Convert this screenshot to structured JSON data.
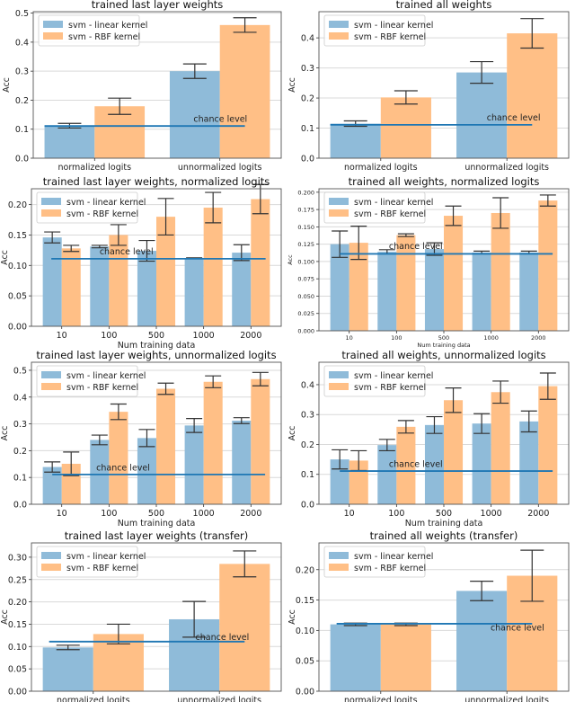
{
  "colors": {
    "linear": "#8fbbd9",
    "rbf": "#ffbf86",
    "chance_line": "#1f77b4",
    "errorbar": "#333333"
  },
  "chart_data": [
    {
      "type": "bar",
      "title": "trained last layer weights",
      "ylabel": "Acc",
      "xlabel": "",
      "categories": [
        "normalized logits",
        "unnormalized logits"
      ],
      "ylim": [
        0,
        0.505
      ],
      "yticks": [
        "0.0",
        "0.1",
        "0.2",
        "0.3",
        "0.4",
        "0.5"
      ],
      "ytick_values": [
        0,
        0.1,
        0.2,
        0.3,
        0.4,
        0.5
      ],
      "grid": true,
      "legend": "top-left",
      "series": [
        {
          "name": "svm - linear kernel",
          "values": [
            0.112,
            0.3
          ],
          "errors": [
            0.008,
            0.025
          ]
        },
        {
          "name": "svm - RBF kernel",
          "values": [
            0.179,
            0.459
          ],
          "errors": [
            0.028,
            0.025
          ]
        }
      ],
      "chance_level": {
        "label": "chance level",
        "value": 0.111,
        "x_range": [
          -0.4,
          1.2
        ],
        "label_at": [
          0.79,
          0.125
        ]
      }
    },
    {
      "type": "bar",
      "title": "trained all weights",
      "ylabel": "Acc",
      "xlabel": "",
      "categories": [
        "normalized logits",
        "unnormalized logits"
      ],
      "ylim": [
        0,
        0.487
      ],
      "yticks": [
        "0.0",
        "0.1",
        "0.2",
        "0.3",
        "0.4"
      ],
      "ytick_values": [
        0,
        0.1,
        0.2,
        0.3,
        0.4
      ],
      "grid": true,
      "legend": "top-left",
      "series": [
        {
          "name": "svm - linear kernel",
          "values": [
            0.115,
            0.285
          ],
          "errors": [
            0.009,
            0.036
          ]
        },
        {
          "name": "svm - RBF kernel",
          "values": [
            0.202,
            0.415
          ],
          "errors": [
            0.022,
            0.049
          ]
        }
      ],
      "chance_level": {
        "label": "chance level",
        "value": 0.111,
        "x_range": [
          -0.4,
          1.2
        ],
        "label_at": [
          0.84,
          0.125
        ]
      }
    },
    {
      "type": "bar",
      "title": "trained last layer weights, normalized logits",
      "ylabel": "Acc",
      "xlabel": "Num training data",
      "categories": [
        "10",
        "100",
        "500",
        "1000",
        "2000"
      ],
      "ylim": [
        0,
        0.226
      ],
      "yticks": [
        "0.00",
        "0.05",
        "0.10",
        "0.15",
        "0.20"
      ],
      "ytick_values": [
        0,
        0.05,
        0.1,
        0.15,
        0.2
      ],
      "grid": true,
      "legend": "top-left",
      "series": [
        {
          "name": "svm - linear kernel",
          "values": [
            0.146,
            0.131,
            0.124,
            0.112,
            0.121
          ],
          "errors": [
            0.009,
            0.002,
            0.017,
            0.0005,
            0.013
          ]
        },
        {
          "name": "svm - RBF kernel",
          "values": [
            0.128,
            0.15,
            0.18,
            0.195,
            0.209
          ],
          "errors": [
            0.005,
            0.017,
            0.03,
            0.025,
            0.024
          ]
        }
      ],
      "chance_level": {
        "label": "chance level",
        "value": 0.111,
        "x_range": [
          -0.22,
          4.31
        ],
        "label_at": [
          0.8,
          0.118
        ]
      }
    },
    {
      "type": "bar",
      "title": "trained all weights, normalized logits",
      "ylabel": "Acc",
      "xlabel": "Num training data",
      "categories": [
        "10",
        "100",
        "500",
        "1000",
        "2000"
      ],
      "ylim": [
        0,
        0.205
      ],
      "yticks": [
        "0.000",
        "0.025",
        "0.050",
        "0.075",
        "0.100",
        "0.125",
        "0.150",
        "0.175",
        "0.200"
      ],
      "ytick_values": [
        0,
        0.025,
        0.05,
        0.075,
        0.1,
        0.125,
        0.15,
        0.175,
        0.2
      ],
      "grid": true,
      "legend": "top-left",
      "series": [
        {
          "name": "svm - linear kernel",
          "values": [
            0.125,
            0.114,
            0.118,
            0.113,
            0.113
          ],
          "errors": [
            0.019,
            0.003,
            0.009,
            0.002,
            0.002
          ]
        },
        {
          "name": "svm - RBF kernel",
          "values": [
            0.127,
            0.138,
            0.166,
            0.17,
            0.188
          ],
          "errors": [
            0.024,
            0.002,
            0.014,
            0.022,
            0.008
          ]
        }
      ],
      "chance_level": {
        "label": "chance level",
        "value": 0.111,
        "x_range": [
          -0.2,
          4.3
        ],
        "label_at": [
          0.84,
          0.118
        ]
      }
    },
    {
      "type": "bar",
      "title": "trained last layer weights, unnormalized logits",
      "ylabel": "Acc",
      "xlabel": "Num training data",
      "categories": [
        "10",
        "100",
        "500",
        "1000",
        "2000"
      ],
      "ylim": [
        0,
        0.53
      ],
      "yticks": [
        "0.0",
        "0.1",
        "0.2",
        "0.3",
        "0.4",
        "0.5"
      ],
      "ytick_values": [
        0,
        0.1,
        0.2,
        0.3,
        0.4,
        0.5
      ],
      "grid": true,
      "legend": "top-left",
      "series": [
        {
          "name": "svm - linear kernel",
          "values": [
            0.139,
            0.24,
            0.247,
            0.294,
            0.312
          ],
          "errors": [
            0.019,
            0.018,
            0.032,
            0.026,
            0.011
          ]
        },
        {
          "name": "svm - RBF kernel",
          "values": [
            0.151,
            0.345,
            0.431,
            0.457,
            0.467
          ],
          "errors": [
            0.044,
            0.029,
            0.021,
            0.022,
            0.025
          ]
        }
      ],
      "chance_level": {
        "label": "chance level",
        "value": 0.111,
        "x_range": [
          -0.2,
          4.3
        ],
        "label_at": [
          0.73,
          0.125
        ]
      }
    },
    {
      "type": "bar",
      "title": "trained all weights, unnormalized logits",
      "ylabel": "Acc",
      "xlabel": "Num training data",
      "categories": [
        "10",
        "100",
        "500",
        "1000",
        "2000"
      ],
      "ylim": [
        0,
        0.475
      ],
      "yticks": [
        "0.0",
        "0.1",
        "0.2",
        "0.3",
        "0.4"
      ],
      "ytick_values": [
        0,
        0.1,
        0.2,
        0.3,
        0.4
      ],
      "grid": true,
      "legend": "top-left",
      "series": [
        {
          "name": "svm - linear kernel",
          "values": [
            0.15,
            0.198,
            0.265,
            0.27,
            0.277
          ],
          "errors": [
            0.032,
            0.019,
            0.028,
            0.033,
            0.035
          ]
        },
        {
          "name": "svm - RBF kernel",
          "values": [
            0.146,
            0.259,
            0.348,
            0.375,
            0.395
          ],
          "errors": [
            0.033,
            0.021,
            0.041,
            0.037,
            0.044
          ]
        }
      ],
      "chance_level": {
        "label": "chance level",
        "value": 0.111,
        "x_range": [
          -0.2,
          4.3
        ],
        "label_at": [
          0.84,
          0.125
        ]
      }
    },
    {
      "type": "bar",
      "title": "trained last layer weights (transfer)",
      "ylabel": "Acc",
      "xlabel": "",
      "categories": [
        "normalized logits",
        "unnormalized logits"
      ],
      "ylim": [
        0,
        0.332
      ],
      "yticks": [
        "0.00",
        "0.05",
        "0.10",
        "0.15",
        "0.20",
        "0.25",
        "0.30"
      ],
      "ytick_values": [
        0,
        0.05,
        0.1,
        0.15,
        0.2,
        0.25,
        0.3
      ],
      "grid": true,
      "legend": "top-left",
      "series": [
        {
          "name": "svm - linear kernel",
          "values": [
            0.098,
            0.161
          ],
          "errors": [
            0.005,
            0.04
          ]
        },
        {
          "name": "svm - RBF kernel",
          "values": [
            0.128,
            0.285
          ],
          "errors": [
            0.022,
            0.029
          ]
        }
      ],
      "chance_level": {
        "label": "chance level",
        "value": 0.111,
        "x_range": [
          -0.35,
          1.2
        ],
        "label_at": [
          0.81,
          0.115
        ]
      }
    },
    {
      "type": "bar",
      "title": "trained all weights (transfer)",
      "ylabel": "Acc",
      "xlabel": "",
      "categories": [
        "normalized logits",
        "unnormalized logits"
      ],
      "ylim": [
        0,
        0.244
      ],
      "yticks": [
        "0.00",
        "0.05",
        "0.10",
        "0.15",
        "0.20"
      ],
      "ytick_values": [
        0,
        0.05,
        0.1,
        0.15,
        0.2
      ],
      "grid": true,
      "legend": "top-left",
      "series": [
        {
          "name": "svm - linear kernel",
          "values": [
            0.11,
            0.165
          ],
          "errors": [
            0.002,
            0.016
          ]
        },
        {
          "name": "svm - RBF kernel",
          "values": [
            0.11,
            0.19
          ],
          "errors": [
            0.002,
            0.042
          ]
        }
      ],
      "chance_level": {
        "label": "chance level",
        "value": 0.111,
        "x_range": [
          -0.35,
          1.2
        ],
        "label_at": [
          0.87,
          0.1
        ]
      }
    }
  ]
}
